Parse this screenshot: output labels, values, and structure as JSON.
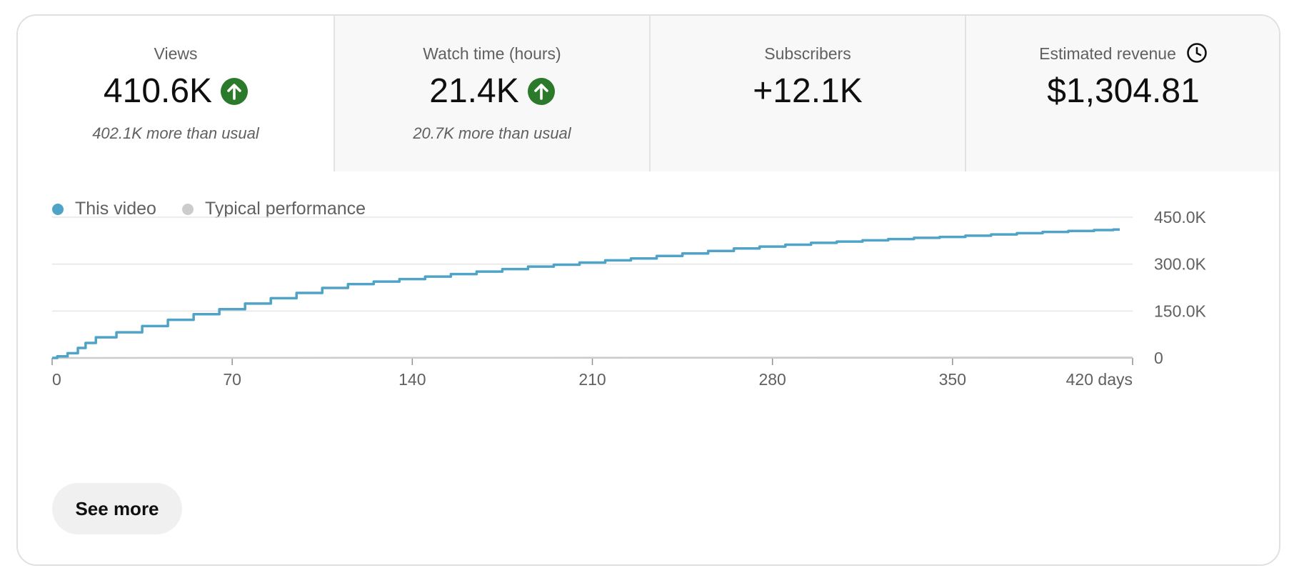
{
  "tabs": [
    {
      "label": "Views",
      "value": "410.6K",
      "trend": "up",
      "sub": "402.1K more than usual"
    },
    {
      "label": "Watch time (hours)",
      "value": "21.4K",
      "trend": "up",
      "sub": "20.7K more than usual"
    },
    {
      "label": "Subscribers",
      "value": "+12.1K"
    },
    {
      "label": "Estimated revenue",
      "value": "$1,304.81",
      "icon": "clock-icon"
    }
  ],
  "legend": {
    "this_video": "This video",
    "typical": "Typical performance"
  },
  "colors": {
    "this_video": "#4fa3c7",
    "typical": "#cccccc",
    "trend_up": "#2b7a2b"
  },
  "see_more_label": "See more",
  "chart_data": {
    "type": "line",
    "title": "",
    "xlabel": "",
    "ylabel": "",
    "x_ticks": [
      "0",
      "70",
      "140",
      "210",
      "280",
      "350",
      "420 days"
    ],
    "y_ticks": [
      "0",
      "150.0K",
      "300.0K",
      "450.0K"
    ],
    "xlim": [
      0,
      420
    ],
    "ylim": [
      0,
      450000
    ],
    "grid": true,
    "series": [
      {
        "name": "This video",
        "x": [
          0,
          4,
          8,
          12,
          14,
          20,
          30,
          40,
          50,
          60,
          70,
          80,
          90,
          100,
          110,
          120,
          130,
          140,
          150,
          160,
          170,
          180,
          190,
          200,
          210,
          220,
          230,
          240,
          250,
          260,
          270,
          280,
          290,
          300,
          310,
          320,
          330,
          340,
          350,
          360,
          370,
          380,
          390,
          400,
          410,
          415
        ],
        "y": [
          0,
          5000,
          15000,
          32000,
          48000,
          66000,
          82000,
          102000,
          122000,
          140000,
          156000,
          174000,
          191000,
          208000,
          224000,
          236000,
          244000,
          252000,
          260000,
          268000,
          276000,
          284000,
          292000,
          298000,
          305000,
          312000,
          318000,
          326000,
          334000,
          342000,
          350000,
          356000,
          362000,
          368000,
          372000,
          376000,
          380000,
          384000,
          387000,
          391000,
          395000,
          399000,
          403000,
          406000,
          409000,
          410600
        ]
      },
      {
        "name": "Typical performance",
        "x": [
          0,
          420
        ],
        "y": [
          0,
          1500
        ]
      }
    ]
  }
}
